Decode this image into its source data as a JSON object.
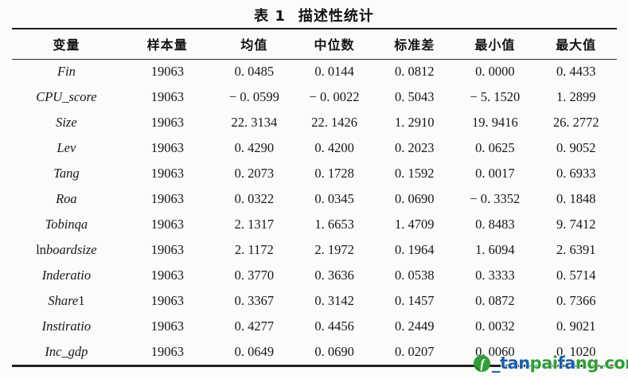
{
  "page": {
    "background": "#fbfbf9",
    "text_color": "#161616"
  },
  "table": {
    "title_prefix": "表 1",
    "title_text": "描述性统计",
    "columns": [
      "变量",
      "样本量",
      "均值",
      "中位数",
      "标准差",
      "最小值",
      "最大值"
    ],
    "rows": [
      {
        "variable": [
          {
            "text": "Fin",
            "italic": true
          }
        ],
        "values": [
          "19063",
          "0. 0485",
          "0. 0144",
          "0. 0812",
          "0. 0000",
          "0. 4433"
        ]
      },
      {
        "variable": [
          {
            "text": "CPU_score",
            "italic": true
          }
        ],
        "values": [
          "19063",
          "− 0. 0599",
          "− 0. 0022",
          "0. 5043",
          "− 5. 1520",
          "1. 2899"
        ]
      },
      {
        "variable": [
          {
            "text": "Size",
            "italic": true
          }
        ],
        "values": [
          "19063",
          "22. 3134",
          "22. 1426",
          "1. 2910",
          "19. 9416",
          "26. 2772"
        ]
      },
      {
        "variable": [
          {
            "text": "Lev",
            "italic": true
          }
        ],
        "values": [
          "19063",
          "0. 4290",
          "0. 4200",
          "0. 2023",
          "0. 0625",
          "0. 9052"
        ]
      },
      {
        "variable": [
          {
            "text": "Tang",
            "italic": true
          }
        ],
        "values": [
          "19063",
          "0. 2073",
          "0. 1728",
          "0. 1592",
          "0. 0017",
          "0. 6933"
        ]
      },
      {
        "variable": [
          {
            "text": "Roa",
            "italic": true
          }
        ],
        "values": [
          "19063",
          "0. 0322",
          "0. 0345",
          "0. 0690",
          "− 0. 3352",
          "0. 1848"
        ]
      },
      {
        "variable": [
          {
            "text": "Tobinqa",
            "italic": true
          }
        ],
        "values": [
          "19063",
          "2. 1317",
          "1. 6653",
          "1. 4709",
          "0. 8483",
          "9. 7412"
        ]
      },
      {
        "variable": [
          {
            "text": "ln",
            "italic": false
          },
          {
            "text": "boardsize",
            "italic": true
          }
        ],
        "values": [
          "19063",
          "2. 1172",
          "2. 1972",
          "0. 1964",
          "1. 6094",
          "2. 6391"
        ]
      },
      {
        "variable": [
          {
            "text": "Inderatio",
            "italic": true
          }
        ],
        "values": [
          "19063",
          "0. 3770",
          "0. 3636",
          "0. 0538",
          "0. 3333",
          "0. 5714"
        ]
      },
      {
        "variable": [
          {
            "text": "Share",
            "italic": true
          },
          {
            "text": "1",
            "italic": false
          }
        ],
        "values": [
          "19063",
          "0. 3367",
          "0. 3142",
          "0. 1457",
          "0. 0872",
          "0. 7366"
        ]
      },
      {
        "variable": [
          {
            "text": "Instiratio",
            "italic": true
          }
        ],
        "values": [
          "19063",
          "0. 4277",
          "0. 4456",
          "0. 2449",
          "0. 0032",
          "0. 9021"
        ]
      },
      {
        "variable": [
          {
            "text": "Inc_gdp",
            "italic": true
          }
        ],
        "values": [
          "19063",
          "0. 0649",
          "0. 0690",
          "0. 0207",
          "0. 0060",
          "0. 1020"
        ]
      }
    ]
  },
  "watermark": {
    "segments": [
      {
        "text": "_tan",
        "color": "#1c5fae"
      },
      {
        "text": "pai",
        "color": "#2f9e36"
      },
      {
        "text": "fa",
        "color": "#1c5fae"
      },
      {
        "text": "ng.com",
        "color": "#2f9e36"
      }
    ],
    "logo_color": "#2f9e36",
    "logo_glyph": "f"
  }
}
